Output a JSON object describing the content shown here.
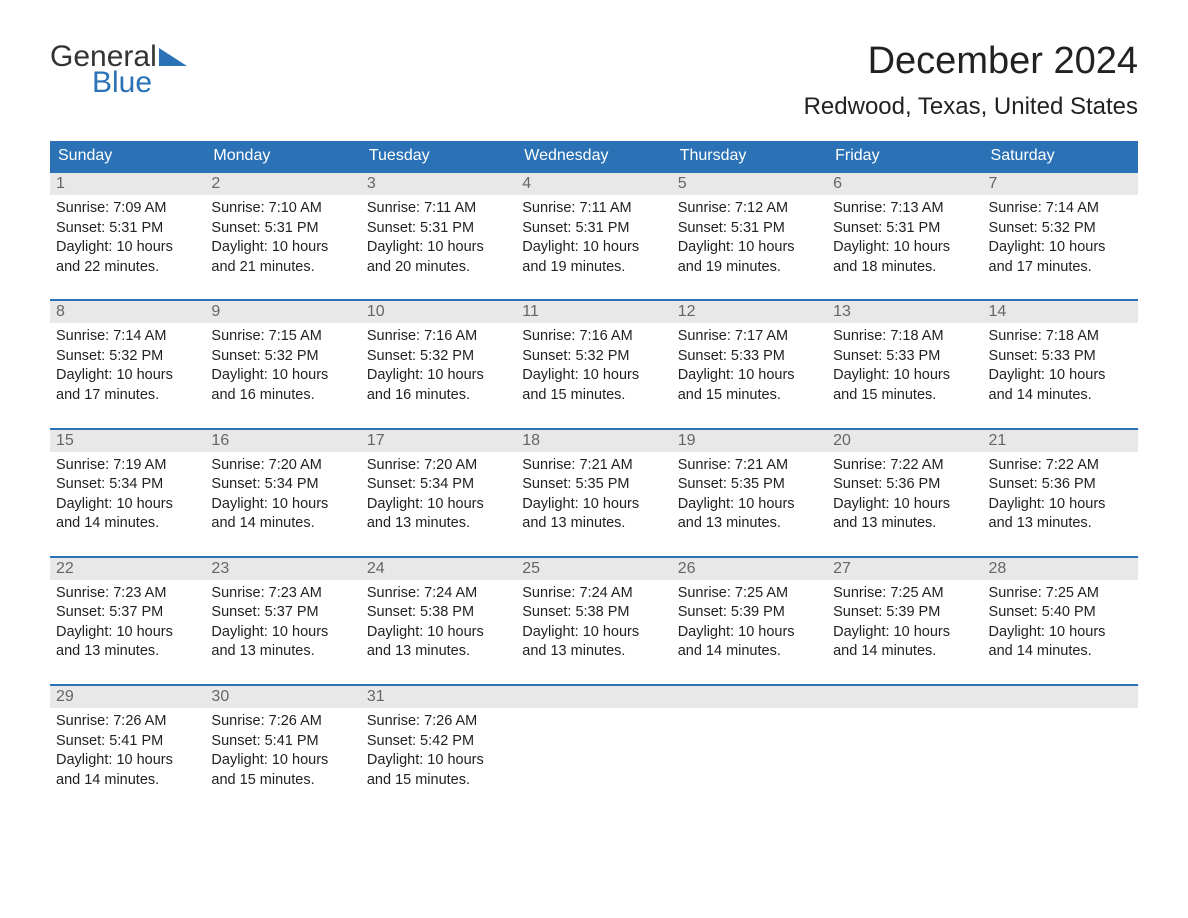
{
  "logo": {
    "text1": "General",
    "text2": "Blue",
    "color1": "#333333",
    "color2": "#2a72b5",
    "triangle_color": "#2a72b5"
  },
  "title": "December 2024",
  "location": "Redwood, Texas, United States",
  "header_bg": "#2a72b5",
  "header_fg": "#ffffff",
  "daynum_bg": "#e8e8e8",
  "daynum_fg": "#666666",
  "border_color": "#2a72b5",
  "text_color": "#222222",
  "background_color": "#ffffff",
  "day_headers": [
    "Sunday",
    "Monday",
    "Tuesday",
    "Wednesday",
    "Thursday",
    "Friday",
    "Saturday"
  ],
  "weeks": [
    [
      {
        "n": "1",
        "sunrise": "7:09 AM",
        "sunset": "5:31 PM",
        "dl": "10 hours and 22 minutes."
      },
      {
        "n": "2",
        "sunrise": "7:10 AM",
        "sunset": "5:31 PM",
        "dl": "10 hours and 21 minutes."
      },
      {
        "n": "3",
        "sunrise": "7:11 AM",
        "sunset": "5:31 PM",
        "dl": "10 hours and 20 minutes."
      },
      {
        "n": "4",
        "sunrise": "7:11 AM",
        "sunset": "5:31 PM",
        "dl": "10 hours and 19 minutes."
      },
      {
        "n": "5",
        "sunrise": "7:12 AM",
        "sunset": "5:31 PM",
        "dl": "10 hours and 19 minutes."
      },
      {
        "n": "6",
        "sunrise": "7:13 AM",
        "sunset": "5:31 PM",
        "dl": "10 hours and 18 minutes."
      },
      {
        "n": "7",
        "sunrise": "7:14 AM",
        "sunset": "5:32 PM",
        "dl": "10 hours and 17 minutes."
      }
    ],
    [
      {
        "n": "8",
        "sunrise": "7:14 AM",
        "sunset": "5:32 PM",
        "dl": "10 hours and 17 minutes."
      },
      {
        "n": "9",
        "sunrise": "7:15 AM",
        "sunset": "5:32 PM",
        "dl": "10 hours and 16 minutes."
      },
      {
        "n": "10",
        "sunrise": "7:16 AM",
        "sunset": "5:32 PM",
        "dl": "10 hours and 16 minutes."
      },
      {
        "n": "11",
        "sunrise": "7:16 AM",
        "sunset": "5:32 PM",
        "dl": "10 hours and 15 minutes."
      },
      {
        "n": "12",
        "sunrise": "7:17 AM",
        "sunset": "5:33 PM",
        "dl": "10 hours and 15 minutes."
      },
      {
        "n": "13",
        "sunrise": "7:18 AM",
        "sunset": "5:33 PM",
        "dl": "10 hours and 15 minutes."
      },
      {
        "n": "14",
        "sunrise": "7:18 AM",
        "sunset": "5:33 PM",
        "dl": "10 hours and 14 minutes."
      }
    ],
    [
      {
        "n": "15",
        "sunrise": "7:19 AM",
        "sunset": "5:34 PM",
        "dl": "10 hours and 14 minutes."
      },
      {
        "n": "16",
        "sunrise": "7:20 AM",
        "sunset": "5:34 PM",
        "dl": "10 hours and 14 minutes."
      },
      {
        "n": "17",
        "sunrise": "7:20 AM",
        "sunset": "5:34 PM",
        "dl": "10 hours and 13 minutes."
      },
      {
        "n": "18",
        "sunrise": "7:21 AM",
        "sunset": "5:35 PM",
        "dl": "10 hours and 13 minutes."
      },
      {
        "n": "19",
        "sunrise": "7:21 AM",
        "sunset": "5:35 PM",
        "dl": "10 hours and 13 minutes."
      },
      {
        "n": "20",
        "sunrise": "7:22 AM",
        "sunset": "5:36 PM",
        "dl": "10 hours and 13 minutes."
      },
      {
        "n": "21",
        "sunrise": "7:22 AM",
        "sunset": "5:36 PM",
        "dl": "10 hours and 13 minutes."
      }
    ],
    [
      {
        "n": "22",
        "sunrise": "7:23 AM",
        "sunset": "5:37 PM",
        "dl": "10 hours and 13 minutes."
      },
      {
        "n": "23",
        "sunrise": "7:23 AM",
        "sunset": "5:37 PM",
        "dl": "10 hours and 13 minutes."
      },
      {
        "n": "24",
        "sunrise": "7:24 AM",
        "sunset": "5:38 PM",
        "dl": "10 hours and 13 minutes."
      },
      {
        "n": "25",
        "sunrise": "7:24 AM",
        "sunset": "5:38 PM",
        "dl": "10 hours and 13 minutes."
      },
      {
        "n": "26",
        "sunrise": "7:25 AM",
        "sunset": "5:39 PM",
        "dl": "10 hours and 14 minutes."
      },
      {
        "n": "27",
        "sunrise": "7:25 AM",
        "sunset": "5:39 PM",
        "dl": "10 hours and 14 minutes."
      },
      {
        "n": "28",
        "sunrise": "7:25 AM",
        "sunset": "5:40 PM",
        "dl": "10 hours and 14 minutes."
      }
    ],
    [
      {
        "n": "29",
        "sunrise": "7:26 AM",
        "sunset": "5:41 PM",
        "dl": "10 hours and 14 minutes."
      },
      {
        "n": "30",
        "sunrise": "7:26 AM",
        "sunset": "5:41 PM",
        "dl": "10 hours and 15 minutes."
      },
      {
        "n": "31",
        "sunrise": "7:26 AM",
        "sunset": "5:42 PM",
        "dl": "10 hours and 15 minutes."
      },
      null,
      null,
      null,
      null
    ]
  ],
  "labels": {
    "sunrise": "Sunrise: ",
    "sunset": "Sunset: ",
    "daylight": "Daylight: "
  }
}
